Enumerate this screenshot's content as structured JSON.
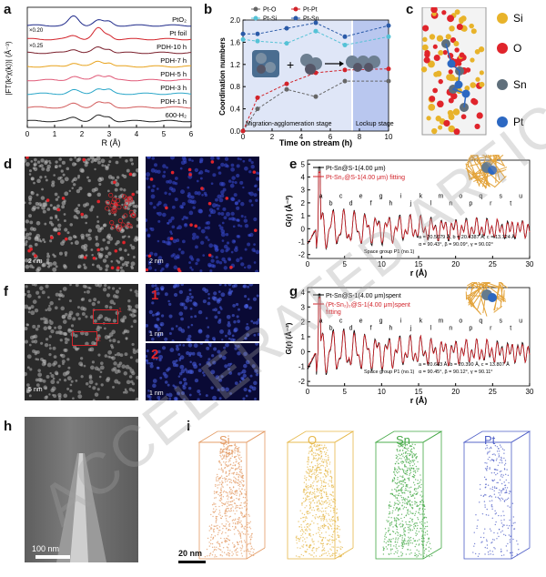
{
  "watermark": "ACCELERATED ARTICLE PREVIEW",
  "panels": {
    "a": {
      "letter": "a",
      "ylabel": "|FT(k²χ(k))| (Å⁻³)",
      "xlabel": "R (Å)",
      "xticks": [
        "0",
        "1",
        "2",
        "3",
        "4",
        "5",
        "6"
      ],
      "scale1": "×0.20",
      "scale2": "×0.25",
      "curves": [
        {
          "label": "PtO₂",
          "color": "#1f2a8a"
        },
        {
          "label": "Pt foil",
          "color": "#d2232a"
        },
        {
          "label": "PDH-10 h",
          "color": "#7a1f2b"
        },
        {
          "label": "PDH-7 h",
          "color": "#e8a21a"
        },
        {
          "label": "PDH-5 h",
          "color": "#e05a78"
        },
        {
          "label": "PDH-3 h",
          "color": "#2aa6c8"
        },
        {
          "label": "PDH-1 h",
          "color": "#d25b5b"
        },
        {
          "label": "600-H₂",
          "color": "#222222"
        }
      ]
    },
    "b": {
      "letter": "b",
      "ylabel": "Coordination numbers",
      "xlabel": "Time on stream (h)",
      "stage1": "Migration-agglomeration stage",
      "stage2": "Lockup stage",
      "legend": [
        "Pt-O",
        "Pt-Pt",
        "Pt-Si",
        "Pt-Sn"
      ],
      "xticks": [
        "0",
        "2",
        "4",
        "6",
        "8",
        "10"
      ],
      "yticks": [
        "0.0",
        "0.4",
        "0.8",
        "1.2",
        "1.6",
        "2.0"
      ]
    },
    "c": {
      "letter": "c",
      "legend": [
        "Si",
        "O",
        "Sn",
        "Pt"
      ]
    },
    "d": {
      "letter": "d",
      "scale_left": "2 nm",
      "scale_right": "2 nm"
    },
    "e": {
      "letter": "e",
      "legend": [
        "Pt-Sn@S-1(4.00 μm)",
        "Pt-Sn₂@S-1(4.00 μm) fitting"
      ],
      "cell": "a = 20.5679 Å, b = 20.4387 Å, c = 13.724 Å,",
      "angles": "α = 90.43°, β = 90.09°, γ = 90.02°",
      "space": "Space group P1 (no.1)",
      "ylabel": "G(r) (Å⁻²)",
      "xlabel": "r (Å)",
      "xticks": [
        "0",
        "5",
        "10",
        "15",
        "20",
        "25",
        "30"
      ],
      "yticks": [
        "5",
        "4",
        "3",
        "2",
        "1",
        "0",
        "-1",
        "-2"
      ],
      "peaks": [
        "a",
        "b",
        "c",
        "d",
        "e",
        "f",
        "g",
        "h",
        "i",
        "j",
        "k",
        "l",
        "m",
        "n",
        "o",
        "p",
        "q",
        "r",
        "s",
        "t",
        "u"
      ]
    },
    "f": {
      "letter": "f",
      "scale_left": "5 nm",
      "inset1": "1",
      "inset2": "2",
      "scale_i1": "1 nm",
      "scale_i2": "1 nm",
      "box1": "1",
      "box2": "2"
    },
    "g": {
      "letter": "g",
      "legend": [
        "Pt-Sn@S-1(4.00 μm)spent",
        "(Pt-Sn₂)₂@S-1(4.00 μm)spent",
        "fitting"
      ],
      "cell": "a = 20.643 Å, b = 20.390 Å, c = 13.807 Å",
      "angles": "α = 90.45°, β = 90.12°, γ = 90.11°",
      "space": "Space group P1 (no.1)",
      "ylabel": "G(r) (Å⁻²)",
      "xlabel": "r (Å)",
      "xticks": [
        "0",
        "5",
        "10",
        "15",
        "20",
        "25",
        "30"
      ],
      "yticks": [
        "4",
        "3",
        "2",
        "1",
        "0",
        "-1",
        "-2"
      ],
      "peaks": [
        "a",
        "b",
        "c",
        "d",
        "e",
        "f",
        "g",
        "h",
        "i",
        "j",
        "k",
        "l",
        "m",
        "n",
        "o",
        "p",
        "q",
        "r",
        "s",
        "t",
        "u"
      ]
    },
    "h": {
      "letter": "h",
      "scale": "100 nm"
    },
    "i": {
      "letter": "i",
      "scale": "20 nm",
      "boxes": [
        {
          "label": "Si",
          "color": "#e39a63"
        },
        {
          "label": "O",
          "color": "#e6b84a"
        },
        {
          "label": "Sn",
          "color": "#43a845"
        },
        {
          "label": "Pt",
          "color": "#4f5fc7"
        }
      ]
    }
  }
}
